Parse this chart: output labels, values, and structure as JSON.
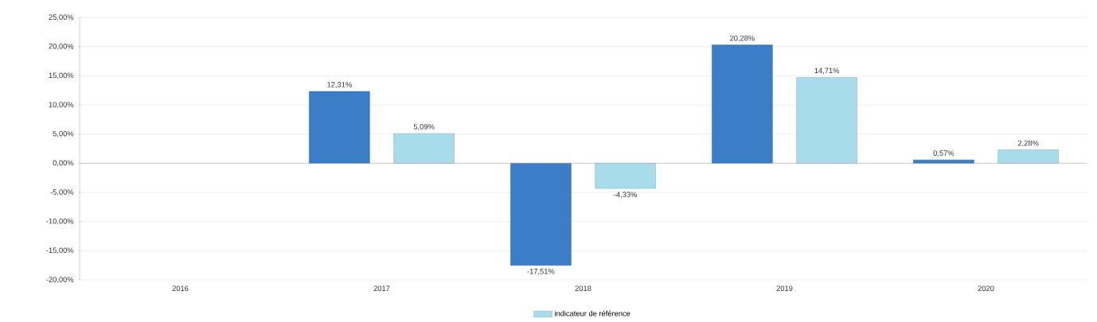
{
  "chart_data": {
    "type": "bar",
    "categories": [
      "2016",
      "2017",
      "2018",
      "2019",
      "2020"
    ],
    "series": [
      {
        "color": "#3b7dc6",
        "values": [
          null,
          12.31,
          -17.51,
          20.28,
          0.57
        ],
        "value_labels": [
          null,
          "12,31%",
          "-17,51%",
          "20,28%",
          "0,57%"
        ]
      },
      {
        "name": "indicateur de référence",
        "color": "#a9dcea",
        "values": [
          null,
          5.09,
          -4.33,
          14.71,
          2.28
        ],
        "value_labels": [
          null,
          "5,09%",
          "-4,33%",
          "14,71%",
          "2,28%"
        ]
      }
    ],
    "ylim": [
      -20,
      25
    ],
    "yticks": [
      {
        "value": -20,
        "label": "-20,00%"
      },
      {
        "value": -15,
        "label": "-15,00%"
      },
      {
        "value": -10,
        "label": "-10,00%"
      },
      {
        "value": -5,
        "label": "-5,00%"
      },
      {
        "value": 0,
        "label": "0,00%"
      },
      {
        "value": 5,
        "label": "5,00%"
      },
      {
        "value": 10,
        "label": "10,00%"
      },
      {
        "value": 15,
        "label": "15,00%"
      },
      {
        "value": 20,
        "label": "20,00%"
      },
      {
        "value": 25,
        "label": "25,00%"
      }
    ],
    "grid": "y",
    "legend": "bottom"
  }
}
